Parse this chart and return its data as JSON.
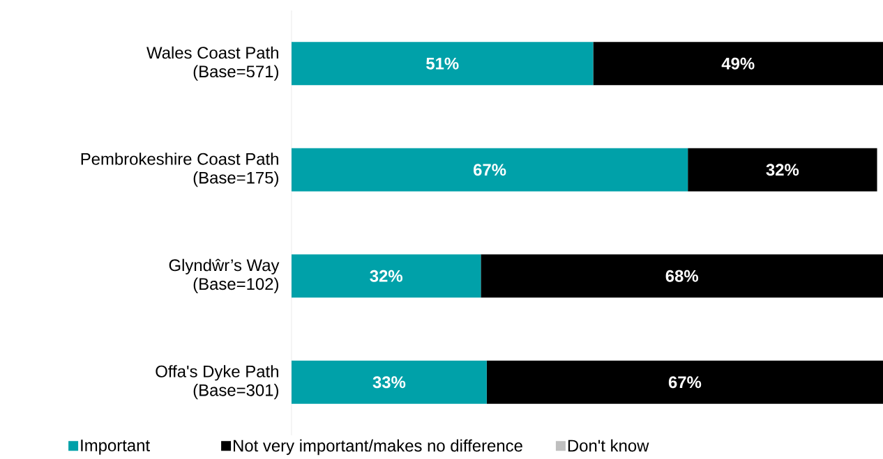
{
  "chart_data": {
    "type": "bar",
    "orientation": "horizontal",
    "stacked": true,
    "categories": [
      "Wales Coast Path (Base=571)",
      "Pembrokeshire Coast Path (Base=175)",
      "Glyndŵr’s Way (Base=102)",
      "Offa's Dyke Path (Base=301)"
    ],
    "legend": "bottom",
    "series": [
      {
        "name": "Important",
        "color": "#00a1a9",
        "values": [
          51,
          67,
          32,
          33
        ],
        "value_labels": [
          "51%",
          "67%",
          "32%",
          "33%"
        ]
      },
      {
        "name": "Not very important/makes no difference",
        "color": "#000000",
        "values": [
          49,
          32,
          68,
          67
        ],
        "value_labels": [
          "49%",
          "32%",
          "68%",
          "67%"
        ]
      },
      {
        "name": "Don't know",
        "color": "#bfbfbf",
        "values": [
          null,
          null,
          null,
          null
        ]
      }
    ]
  }
}
